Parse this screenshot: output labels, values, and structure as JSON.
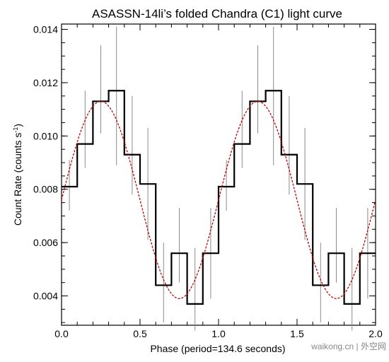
{
  "chart_data": {
    "type": "line",
    "title": "ASASSN-14li’s folded Chandra (C1) light curve",
    "xlabel": "Phase (period=134.6 seconds)",
    "ylabel": "Count Rate (counts s",
    "ylabel_superscript": "-1",
    "ylabel_close": ")",
    "xlim": [
      0.0,
      2.0
    ],
    "ylim": [
      0.0029,
      0.0142
    ],
    "x_ticks": [
      0.0,
      0.5,
      1.0,
      1.5,
      2.0
    ],
    "x_tick_labels": [
      "0.0",
      "0.5",
      "1.0",
      "1.5",
      "2.0"
    ],
    "y_ticks": [
      0.004,
      0.006,
      0.008,
      0.01,
      0.012,
      0.014
    ],
    "y_tick_labels": [
      "0.004",
      "0.006",
      "0.008",
      "0.010",
      "0.012",
      "0.014"
    ],
    "grid": false,
    "series": [
      {
        "type": "step",
        "color": "#000000",
        "bin_width": 0.1,
        "bin_starts": [
          0.0,
          0.1,
          0.2,
          0.3,
          0.4,
          0.5,
          0.6,
          0.7,
          0.8,
          0.9,
          1.0,
          1.1,
          1.2,
          1.3,
          1.4,
          1.5,
          1.6,
          1.7,
          1.8,
          1.9
        ],
        "values": [
          0.0081,
          0.0097,
          0.0113,
          0.0117,
          0.0093,
          0.0082,
          0.0044,
          0.0056,
          0.0037,
          0.0056,
          0.0081,
          0.0097,
          0.0113,
          0.0117,
          0.0093,
          0.0082,
          0.0044,
          0.0056,
          0.0037,
          0.0056
        ],
        "errors_low": [
          0.0072,
          0.0088,
          0.0101,
          0.0089,
          0.0078,
          0.0061,
          0.003,
          0.0045,
          0.0027,
          0.0039,
          0.0072,
          0.0088,
          0.0101,
          0.0089,
          0.0078,
          0.0061,
          0.003,
          0.0045,
          0.0027,
          0.0039
        ],
        "errors_high": [
          0.0091,
          0.0117,
          0.0134,
          0.0141,
          0.0115,
          0.0103,
          0.006,
          0.0073,
          0.0058,
          0.0073,
          0.0091,
          0.0117,
          0.0134,
          0.0141,
          0.0115,
          0.0103,
          0.006,
          0.0073,
          0.0058,
          0.0073
        ]
      },
      {
        "type": "sinusoid-fit",
        "color": "#c00000",
        "style": "dashed",
        "mean": 0.0076,
        "amplitude": 0.0037,
        "peak_phase": 0.25
      }
    ]
  },
  "watermark": {
    "text": "waikong.cn | 外空网"
  }
}
